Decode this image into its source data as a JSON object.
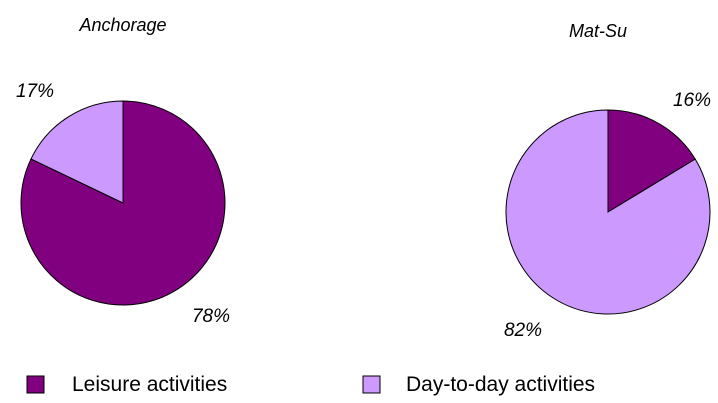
{
  "chart_data": [
    {
      "type": "pie",
      "title": "Anchorage",
      "slices": [
        {
          "series": "Leisure activities",
          "value": 78,
          "label": "78%"
        },
        {
          "series": "Day-to-day activities",
          "value": 17,
          "label": "17%"
        }
      ]
    },
    {
      "type": "pie",
      "title": "Mat-Su",
      "slices": [
        {
          "series": "Leisure activities",
          "value": 16,
          "label": "16%"
        },
        {
          "series": "Day-to-day activities",
          "value": 82,
          "label": "82%"
        }
      ]
    }
  ],
  "legend": [
    {
      "label": "Leisure activities",
      "color": "#800080"
    },
    {
      "label": "Day-to-day activities",
      "color": "#CC99FF"
    }
  ]
}
